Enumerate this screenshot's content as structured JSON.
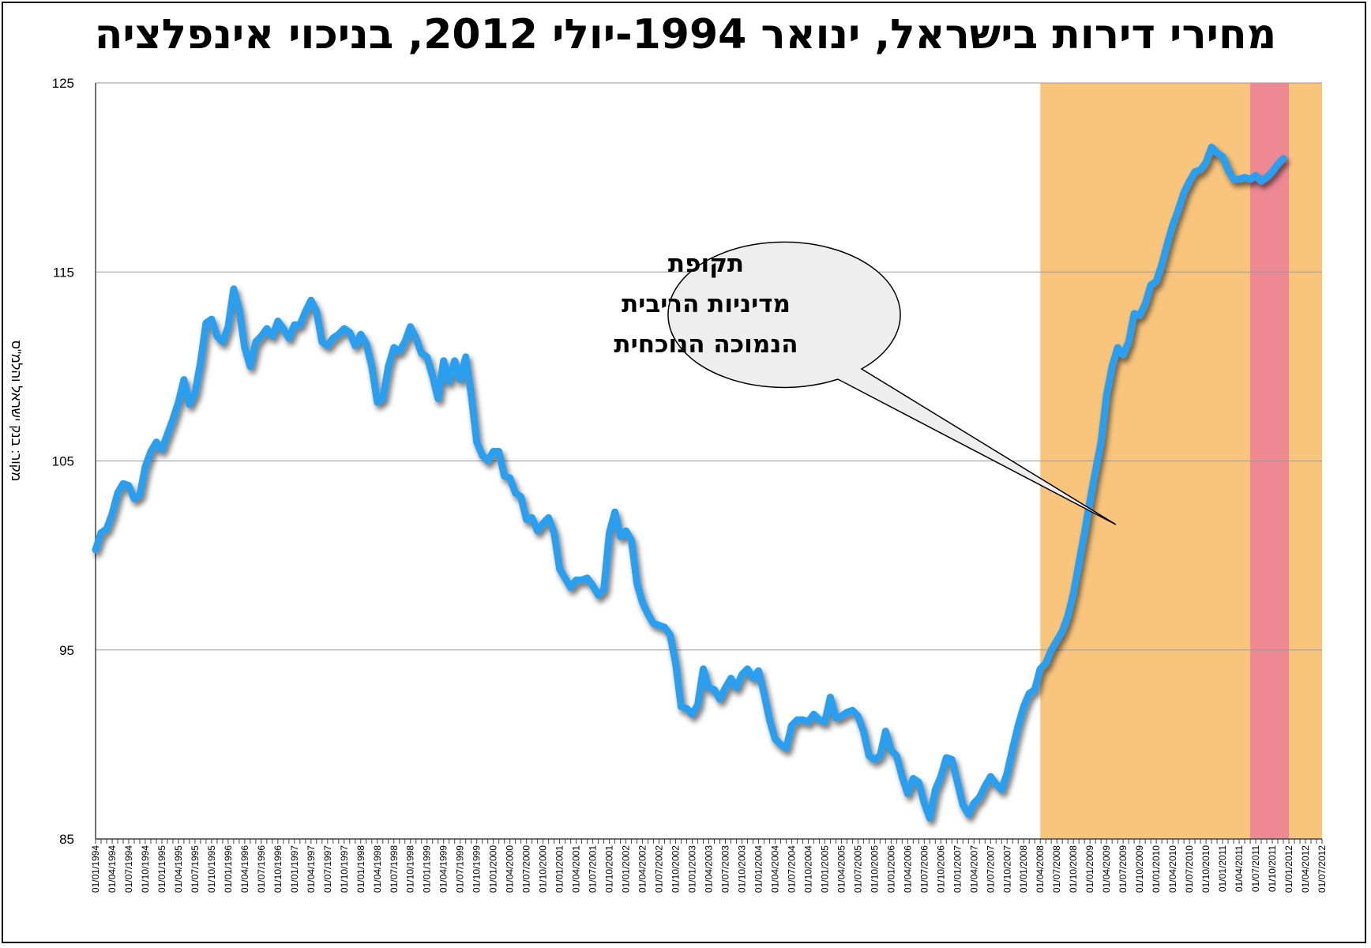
{
  "chart_data": {
    "type": "line",
    "title": "מחירי דירות בישראל, ינואר 1994-יולי 2012, בניכוי אינפלציה",
    "ylabel": "מקור: בנק ישראל והלמ\"ס",
    "ylim": [
      85,
      125
    ],
    "yticks": [
      85,
      95,
      105,
      115,
      125
    ],
    "grid": true,
    "x_start": "1994-01",
    "x_end": "2012-07",
    "x_step_months": 1,
    "xtick_labels": [
      "01/01/1994",
      "01/04/1994",
      "01/07/1994",
      "01/10/1994",
      "01/01/1995",
      "01/04/1995",
      "01/07/1995",
      "01/10/1995",
      "01/01/1996",
      "01/04/1996",
      "01/07/1996",
      "01/10/1996",
      "01/01/1997",
      "01/04/1997",
      "01/07/1997",
      "01/10/1997",
      "01/01/1998",
      "01/04/1998",
      "01/07/1998",
      "01/10/1998",
      "01/01/1999",
      "01/04/1999",
      "01/07/1999",
      "01/10/1999",
      "01/01/2000",
      "01/04/2000",
      "01/07/2000",
      "01/10/2000",
      "01/01/2001",
      "01/04/2001",
      "01/07/2001",
      "01/10/2001",
      "01/01/2002",
      "01/04/2002",
      "01/07/2002",
      "01/10/2002",
      "01/01/2003",
      "01/04/2003",
      "01/07/2003",
      "01/10/2003",
      "01/01/2004",
      "01/04/2004",
      "01/07/2004",
      "01/10/2004",
      "01/01/2005",
      "01/04/2005",
      "01/07/2005",
      "01/10/2005",
      "01/01/2006",
      "01/04/2006",
      "01/07/2006",
      "01/10/2006",
      "01/01/2007",
      "01/04/2007",
      "01/07/2007",
      "01/10/2007",
      "01/01/2008",
      "01/04/2008",
      "01/07/2008",
      "01/10/2008",
      "01/01/2009",
      "01/04/2009",
      "01/07/2009",
      "01/10/2009",
      "01/01/2010",
      "01/04/2010",
      "01/07/2010",
      "01/10/2010",
      "01/01/2011",
      "01/04/2011",
      "01/07/2011",
      "01/10/2011",
      "01/01/2012",
      "01/04/2012",
      "01/07/2012"
    ],
    "series": [
      {
        "color": "#2b9ff0",
        "values": [
          100.3,
          101.2,
          101.4,
          102.2,
          103.3,
          103.8,
          103.7,
          103.0,
          103.2,
          104.7,
          105.5,
          106.0,
          105.6,
          106.4,
          107.2,
          108.1,
          109.3,
          108.0,
          108.6,
          110.2,
          112.3,
          112.5,
          111.6,
          111.3,
          112.1,
          114.1,
          113.0,
          111.0,
          110.0,
          111.3,
          111.6,
          112.0,
          111.6,
          112.4,
          112.0,
          111.5,
          112.2,
          112.2,
          112.9,
          113.5,
          112.9,
          111.3,
          111.1,
          111.5,
          111.7,
          112.0,
          111.8,
          111.1,
          111.7,
          111.2,
          110.0,
          108.1,
          108.3,
          110.0,
          111.0,
          110.8,
          111.3,
          112.1,
          111.5,
          110.7,
          110.5,
          109.5,
          108.3,
          110.3,
          109.2,
          110.3,
          109.3,
          110.5,
          108.5,
          106.0,
          105.3,
          105.0,
          105.5,
          105.5,
          104.2,
          104.1,
          103.3,
          103.1,
          101.9,
          102.0,
          101.3,
          101.7,
          102.0,
          101.2,
          99.3,
          98.8,
          98.3,
          98.7,
          98.7,
          98.8,
          98.4,
          97.9,
          98.2,
          101.2,
          102.3,
          101.0,
          101.3,
          100.8,
          98.5,
          97.5,
          96.9,
          96.4,
          96.3,
          96.2,
          95.8,
          94.3,
          92.0,
          91.9,
          91.6,
          92.1,
          94.0,
          93.0,
          92.9,
          92.4,
          93.0,
          93.5,
          93.0,
          93.7,
          94.0,
          93.5,
          93.9,
          92.7,
          91.3,
          90.3,
          90.0,
          89.8,
          91.0,
          91.3,
          91.3,
          91.2,
          91.6,
          91.3,
          91.2,
          92.5,
          91.4,
          91.5,
          91.7,
          91.8,
          91.5,
          90.7,
          89.4,
          89.2,
          89.4,
          90.7,
          89.7,
          89.4,
          88.3,
          87.4,
          88.2,
          88.0,
          86.9,
          86.1,
          87.6,
          88.3,
          89.3,
          89.2,
          88.0,
          86.8,
          86.3,
          86.9,
          87.2,
          87.8,
          88.3,
          87.9,
          87.6,
          88.5,
          89.8,
          91.0,
          92.0,
          92.7,
          92.9,
          94.0,
          94.3,
          95.0,
          95.5,
          96.0,
          96.8,
          98.0,
          99.6,
          101.2,
          102.9,
          104.5,
          106.0,
          108.5,
          110.0,
          111.0,
          110.6,
          111.3,
          112.8,
          112.7,
          113.3,
          114.3,
          114.5,
          115.4,
          116.5,
          117.5,
          118.3,
          119.2,
          119.8,
          120.3,
          120.4,
          120.8,
          121.6,
          121.3,
          121.1,
          120.4,
          119.9,
          119.9,
          120.0,
          119.9,
          120.1,
          119.8,
          120.0,
          120.3,
          120.7,
          121.0
        ]
      }
    ],
    "shaded_regions": [
      {
        "start": "2008-04",
        "end": "2012-07",
        "color": "#f9c57c"
      },
      {
        "start": "2011-06",
        "end": "2012-01",
        "color": "#ee8994"
      }
    ],
    "annotation": {
      "lines": [
        "תקופת",
        "מדיניות הריבית",
        "הנמוכה הנוכחית"
      ],
      "points_to": "2009-06",
      "fill": "#eeeeee"
    }
  }
}
